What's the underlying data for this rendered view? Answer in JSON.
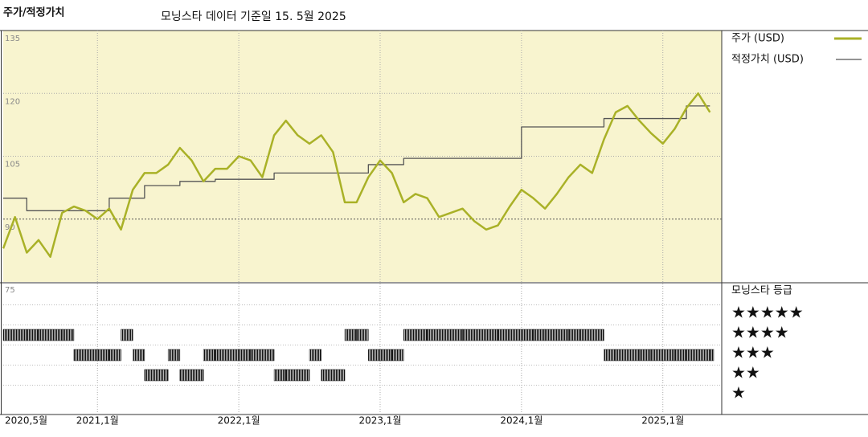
{
  "chart_data": {
    "type": "line",
    "title": "주가/적정가치",
    "subtitle": "모닝스타 데이터 기준일 15. 5월 2025",
    "x": [
      "2020-05",
      "2020-06",
      "2020-07",
      "2020-08",
      "2020-09",
      "2020-10",
      "2020-11",
      "2020-12",
      "2021-01",
      "2021-02",
      "2021-03",
      "2021-04",
      "2021-05",
      "2021-06",
      "2021-07",
      "2021-08",
      "2021-09",
      "2021-10",
      "2021-11",
      "2021-12",
      "2022-01",
      "2022-02",
      "2022-03",
      "2022-04",
      "2022-05",
      "2022-06",
      "2022-07",
      "2022-08",
      "2022-09",
      "2022-10",
      "2022-11",
      "2022-12",
      "2023-01",
      "2023-02",
      "2023-03",
      "2023-04",
      "2023-05",
      "2023-06",
      "2023-07",
      "2023-08",
      "2023-09",
      "2023-10",
      "2023-11",
      "2023-12",
      "2024-01",
      "2024-02",
      "2024-03",
      "2024-04",
      "2024-05",
      "2024-06",
      "2024-07",
      "2024-08",
      "2024-09",
      "2024-10",
      "2024-11",
      "2024-12",
      "2025-01",
      "2025-02",
      "2025-03",
      "2025-04",
      "2025-05"
    ],
    "series": [
      {
        "name": "주가 (USD)",
        "color": "#a9b127",
        "values": [
          83,
          90.5,
          82,
          85,
          81,
          91.5,
          93,
          92,
          90,
          92.5,
          87.5,
          97,
          101,
          101,
          103,
          107,
          104,
          99,
          102,
          102,
          105,
          104,
          100,
          110,
          113.5,
          110,
          108,
          110,
          106,
          94,
          94,
          100,
          104,
          101,
          94,
          96,
          95,
          90.5,
          91.5,
          92.5,
          89.5,
          87.5,
          88.5,
          93,
          97,
          95,
          92.5,
          96,
          100,
          103,
          101,
          109,
          115.5,
          117,
          113.5,
          110.5,
          108,
          111.5,
          116.5,
          120,
          115.5
        ]
      },
      {
        "name": "적정가치 (USD)",
        "color": "#555555",
        "step": true,
        "values": [
          95,
          95,
          92,
          92,
          92,
          92,
          92,
          92,
          92,
          95,
          95,
          95,
          98,
          98,
          98,
          99,
          99,
          99,
          99.5,
          99.5,
          99.5,
          99.5,
          99.5,
          101,
          101,
          101,
          101,
          101,
          101,
          101,
          101,
          103,
          103,
          103,
          104.5,
          104.5,
          104.5,
          104.5,
          104.5,
          104.5,
          104.5,
          104.5,
          104.5,
          104.5,
          112,
          112,
          112,
          112,
          112,
          112,
          112,
          114,
          114,
          114,
          114,
          114,
          114,
          114,
          117,
          117,
          117
        ]
      }
    ],
    "xlim": [
      "2020-05",
      "2025-06"
    ],
    "xticks": [
      {
        "value": "2020-05",
        "label": "2020,5월"
      },
      {
        "value": "2021-01",
        "label": "2021,1월"
      },
      {
        "value": "2022-01",
        "label": "2022,1월"
      },
      {
        "value": "2023-01",
        "label": "2023,1월"
      },
      {
        "value": "2024-01",
        "label": "2024,1월"
      },
      {
        "value": "2025-01",
        "label": "2025,1월"
      }
    ],
    "ylim": [
      75,
      135
    ],
    "yticks": [
      75,
      90,
      105,
      120,
      135
    ],
    "grid": true,
    "background": "#f8f4cf",
    "rating_panel": {
      "title": "모닝스타 등급",
      "levels": [
        5,
        4,
        3,
        2,
        1
      ],
      "level_labels": [
        "★★★★★",
        "★★★★",
        "★★★",
        "★★",
        "★"
      ],
      "color": "#111111",
      "values": [
        4,
        4,
        4,
        4,
        4,
        4,
        3,
        3,
        3,
        3,
        4,
        3,
        2,
        2,
        3,
        2,
        2,
        3,
        3,
        3,
        3,
        3,
        3,
        2,
        2,
        2,
        3,
        2,
        2,
        4,
        4,
        3,
        3,
        3,
        4,
        4,
        4,
        4,
        4,
        4,
        4,
        4,
        4,
        4,
        4,
        4,
        4,
        4,
        4,
        4,
        4,
        3,
        3,
        3,
        3,
        3,
        3,
        3,
        3,
        3,
        3
      ]
    }
  }
}
